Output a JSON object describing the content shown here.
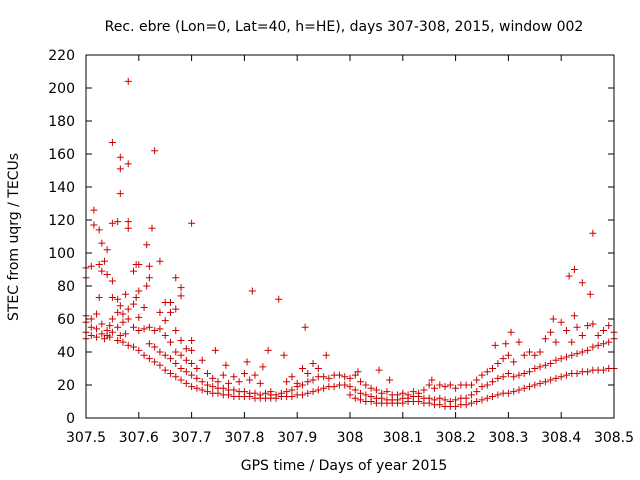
{
  "chart_data": {
    "type": "scatter",
    "title": "Rec. ebre (Lon=0, Lat=40, h=HE), days 307-308, 2015, window 002",
    "xlabel": "GPS time / Days of year 2015",
    "ylabel": "STEC from uqrg / TECUs",
    "xlim": [
      307.5,
      308.5
    ],
    "ylim": [
      0,
      220
    ],
    "xticks": [
      "307.5",
      "307.6",
      "307.7",
      "307.8",
      "307.9",
      "308",
      "308.1",
      "308.2",
      "308.3",
      "308.4",
      "308.5"
    ],
    "yticks": [
      "0",
      "20",
      "40",
      "60",
      "80",
      "100",
      "120",
      "140",
      "160",
      "180",
      "200",
      "220"
    ],
    "grid": false,
    "marker": "+",
    "color": "#cc0000",
    "points": [
      [
        307.5,
        48
      ],
      [
        307.5,
        52
      ],
      [
        307.5,
        58
      ],
      [
        307.5,
        62
      ],
      [
        307.5,
        85
      ],
      [
        307.5,
        91
      ],
      [
        307.51,
        50
      ],
      [
        307.51,
        55
      ],
      [
        307.51,
        60
      ],
      [
        307.51,
        92
      ],
      [
        307.515,
        117
      ],
      [
        307.515,
        126
      ],
      [
        307.52,
        49
      ],
      [
        307.52,
        54
      ],
      [
        307.52,
        63
      ],
      [
        307.525,
        73
      ],
      [
        307.525,
        93
      ],
      [
        307.525,
        114
      ],
      [
        307.53,
        51
      ],
      [
        307.53,
        57
      ],
      [
        307.53,
        89
      ],
      [
        307.53,
        106
      ],
      [
        307.535,
        48
      ],
      [
        307.535,
        95
      ],
      [
        307.54,
        50
      ],
      [
        307.54,
        53
      ],
      [
        307.54,
        87
      ],
      [
        307.54,
        102
      ],
      [
        307.545,
        49
      ],
      [
        307.545,
        56
      ],
      [
        307.55,
        52
      ],
      [
        307.55,
        60
      ],
      [
        307.55,
        73
      ],
      [
        307.55,
        83
      ],
      [
        307.55,
        118
      ],
      [
        307.55,
        167
      ],
      [
        307.56,
        47
      ],
      [
        307.56,
        55
      ],
      [
        307.56,
        64
      ],
      [
        307.56,
        72
      ],
      [
        307.56,
        119
      ],
      [
        307.565,
        50
      ],
      [
        307.565,
        68
      ],
      [
        307.565,
        136
      ],
      [
        307.565,
        151
      ],
      [
        307.565,
        158
      ],
      [
        307.57,
        46
      ],
      [
        307.57,
        58
      ],
      [
        307.57,
        63
      ],
      [
        307.575,
        51
      ],
      [
        307.575,
        75
      ],
      [
        307.58,
        44
      ],
      [
        307.58,
        60
      ],
      [
        307.58,
        66
      ],
      [
        307.58,
        115
      ],
      [
        307.58,
        119
      ],
      [
        307.58,
        154
      ],
      [
        307.58,
        204
      ],
      [
        307.59,
        43
      ],
      [
        307.59,
        55
      ],
      [
        307.59,
        69
      ],
      [
        307.59,
        89
      ],
      [
        307.595,
        73
      ],
      [
        307.595,
        93
      ],
      [
        307.6,
        41
      ],
      [
        307.6,
        53
      ],
      [
        307.6,
        61
      ],
      [
        307.6,
        77
      ],
      [
        307.6,
        93
      ],
      [
        307.61,
        38
      ],
      [
        307.61,
        54
      ],
      [
        307.61,
        67
      ],
      [
        307.615,
        80
      ],
      [
        307.615,
        105
      ],
      [
        307.62,
        36
      ],
      [
        307.62,
        45
      ],
      [
        307.62,
        55
      ],
      [
        307.62,
        85
      ],
      [
        307.62,
        92
      ],
      [
        307.625,
        115
      ],
      [
        307.63,
        34
      ],
      [
        307.63,
        43
      ],
      [
        307.63,
        53
      ],
      [
        307.63,
        162
      ],
      [
        307.64,
        32
      ],
      [
        307.64,
        40
      ],
      [
        307.64,
        54
      ],
      [
        307.64,
        64
      ],
      [
        307.64,
        95
      ],
      [
        307.65,
        29
      ],
      [
        307.65,
        38
      ],
      [
        307.65,
        50
      ],
      [
        307.65,
        59
      ],
      [
        307.65,
        70
      ],
      [
        307.66,
        27
      ],
      [
        307.66,
        36
      ],
      [
        307.66,
        46
      ],
      [
        307.66,
        64
      ],
      [
        307.66,
        70
      ],
      [
        307.67,
        25
      ],
      [
        307.67,
        33
      ],
      [
        307.67,
        40
      ],
      [
        307.67,
        53
      ],
      [
        307.67,
        66
      ],
      [
        307.67,
        85
      ],
      [
        307.68,
        23
      ],
      [
        307.68,
        30
      ],
      [
        307.68,
        38
      ],
      [
        307.68,
        47
      ],
      [
        307.68,
        74
      ],
      [
        307.68,
        79
      ],
      [
        307.69,
        21
      ],
      [
        307.69,
        28
      ],
      [
        307.69,
        35
      ],
      [
        307.69,
        42
      ],
      [
        307.7,
        19
      ],
      [
        307.7,
        26
      ],
      [
        307.7,
        33
      ],
      [
        307.7,
        41
      ],
      [
        307.7,
        47
      ],
      [
        307.7,
        118
      ],
      [
        307.71,
        18
      ],
      [
        307.71,
        24
      ],
      [
        307.71,
        30
      ],
      [
        307.72,
        17
      ],
      [
        307.72,
        22
      ],
      [
        307.72,
        35
      ],
      [
        307.73,
        16
      ],
      [
        307.73,
        20
      ],
      [
        307.73,
        27
      ],
      [
        307.74,
        15
      ],
      [
        307.74,
        19
      ],
      [
        307.74,
        24
      ],
      [
        307.745,
        41
      ],
      [
        307.75,
        15
      ],
      [
        307.75,
        18
      ],
      [
        307.75,
        22
      ],
      [
        307.76,
        14
      ],
      [
        307.76,
        18
      ],
      [
        307.76,
        26
      ],
      [
        307.765,
        32
      ],
      [
        307.77,
        14
      ],
      [
        307.77,
        17
      ],
      [
        307.77,
        21
      ],
      [
        307.78,
        13
      ],
      [
        307.78,
        17
      ],
      [
        307.78,
        25
      ],
      [
        307.79,
        13
      ],
      [
        307.79,
        16
      ],
      [
        307.79,
        22
      ],
      [
        307.8,
        13
      ],
      [
        307.8,
        16
      ],
      [
        307.8,
        27
      ],
      [
        307.805,
        34
      ],
      [
        307.81,
        13
      ],
      [
        307.81,
        15
      ],
      [
        307.81,
        23
      ],
      [
        307.815,
        77
      ],
      [
        307.82,
        12
      ],
      [
        307.82,
        15
      ],
      [
        307.82,
        26
      ],
      [
        307.83,
        12
      ],
      [
        307.83,
        14
      ],
      [
        307.83,
        21
      ],
      [
        307.835,
        31
      ],
      [
        307.84,
        12
      ],
      [
        307.84,
        15
      ],
      [
        307.845,
        41
      ],
      [
        307.85,
        12
      ],
      [
        307.85,
        14
      ],
      [
        307.85,
        16
      ],
      [
        307.86,
        12
      ],
      [
        307.86,
        14
      ],
      [
        307.865,
        72
      ],
      [
        307.87,
        13
      ],
      [
        307.87,
        15
      ],
      [
        307.875,
        38
      ],
      [
        307.88,
        13
      ],
      [
        307.88,
        16
      ],
      [
        307.88,
        22
      ],
      [
        307.89,
        13
      ],
      [
        307.89,
        17
      ],
      [
        307.89,
        25
      ],
      [
        307.9,
        14
      ],
      [
        307.9,
        19
      ],
      [
        307.9,
        21
      ],
      [
        307.91,
        14
      ],
      [
        307.91,
        20
      ],
      [
        307.91,
        30
      ],
      [
        307.915,
        55
      ],
      [
        307.92,
        15
      ],
      [
        307.92,
        22
      ],
      [
        307.92,
        27
      ],
      [
        307.93,
        16
      ],
      [
        307.93,
        23
      ],
      [
        307.93,
        33
      ],
      [
        307.94,
        17
      ],
      [
        307.94,
        25
      ],
      [
        307.94,
        30
      ],
      [
        307.95,
        18
      ],
      [
        307.95,
        25
      ],
      [
        307.955,
        38
      ],
      [
        307.96,
        19
      ],
      [
        307.96,
        24
      ],
      [
        307.97,
        19
      ],
      [
        307.97,
        26
      ],
      [
        307.98,
        20
      ],
      [
        307.98,
        26
      ],
      [
        307.99,
        20
      ],
      [
        307.99,
        25
      ],
      [
        308.0,
        14
      ],
      [
        308.0,
        19
      ],
      [
        308.0,
        24
      ],
      [
        308.01,
        12
      ],
      [
        308.01,
        17
      ],
      [
        308.01,
        26
      ],
      [
        308.015,
        28
      ],
      [
        308.02,
        11
      ],
      [
        308.02,
        15
      ],
      [
        308.02,
        22
      ],
      [
        308.03,
        10
      ],
      [
        308.03,
        14
      ],
      [
        308.03,
        20
      ],
      [
        308.04,
        10
      ],
      [
        308.04,
        13
      ],
      [
        308.04,
        18
      ],
      [
        308.05,
        9
      ],
      [
        308.05,
        12
      ],
      [
        308.05,
        17
      ],
      [
        308.055,
        29
      ],
      [
        308.06,
        9
      ],
      [
        308.06,
        12
      ],
      [
        308.06,
        15
      ],
      [
        308.07,
        9
      ],
      [
        308.07,
        11
      ],
      [
        308.07,
        16
      ],
      [
        308.075,
        23
      ],
      [
        308.08,
        9
      ],
      [
        308.08,
        11
      ],
      [
        308.08,
        14
      ],
      [
        308.09,
        9
      ],
      [
        308.09,
        11
      ],
      [
        308.09,
        14
      ],
      [
        308.1,
        9
      ],
      [
        308.1,
        12
      ],
      [
        308.1,
        15
      ],
      [
        308.11,
        10
      ],
      [
        308.11,
        12
      ],
      [
        308.11,
        14
      ],
      [
        308.12,
        10
      ],
      [
        308.12,
        13
      ],
      [
        308.12,
        16
      ],
      [
        308.13,
        10
      ],
      [
        308.13,
        13
      ],
      [
        308.13,
        15
      ],
      [
        308.14,
        9
      ],
      [
        308.14,
        12
      ],
      [
        308.14,
        17
      ],
      [
        308.15,
        9
      ],
      [
        308.15,
        12
      ],
      [
        308.15,
        20
      ],
      [
        308.155,
        23
      ],
      [
        308.16,
        8
      ],
      [
        308.16,
        11
      ],
      [
        308.16,
        18
      ],
      [
        308.17,
        8
      ],
      [
        308.17,
        12
      ],
      [
        308.17,
        20
      ],
      [
        308.18,
        7
      ],
      [
        308.18,
        11
      ],
      [
        308.18,
        19
      ],
      [
        308.19,
        7
      ],
      [
        308.19,
        10
      ],
      [
        308.19,
        20
      ],
      [
        308.2,
        7
      ],
      [
        308.2,
        11
      ],
      [
        308.2,
        18
      ],
      [
        308.21,
        8
      ],
      [
        308.21,
        12
      ],
      [
        308.21,
        20
      ],
      [
        308.22,
        8
      ],
      [
        308.22,
        12
      ],
      [
        308.22,
        20
      ],
      [
        308.23,
        9
      ],
      [
        308.23,
        14
      ],
      [
        308.23,
        20
      ],
      [
        308.24,
        10
      ],
      [
        308.24,
        16
      ],
      [
        308.24,
        23
      ],
      [
        308.25,
        11
      ],
      [
        308.25,
        19
      ],
      [
        308.25,
        26
      ],
      [
        308.26,
        12
      ],
      [
        308.26,
        20
      ],
      [
        308.26,
        28
      ],
      [
        308.27,
        13
      ],
      [
        308.27,
        22
      ],
      [
        308.27,
        30
      ],
      [
        308.275,
        44
      ],
      [
        308.28,
        14
      ],
      [
        308.28,
        24
      ],
      [
        308.28,
        33
      ],
      [
        308.29,
        15
      ],
      [
        308.29,
        25
      ],
      [
        308.29,
        36
      ],
      [
        308.295,
        45
      ],
      [
        308.3,
        15
      ],
      [
        308.3,
        27
      ],
      [
        308.3,
        38
      ],
      [
        308.305,
        52
      ],
      [
        308.31,
        16
      ],
      [
        308.31,
        25
      ],
      [
        308.31,
        34
      ],
      [
        308.32,
        17
      ],
      [
        308.32,
        26
      ],
      [
        308.32,
        46
      ],
      [
        308.33,
        18
      ],
      [
        308.33,
        27
      ],
      [
        308.33,
        38
      ],
      [
        308.34,
        19
      ],
      [
        308.34,
        28
      ],
      [
        308.34,
        40
      ],
      [
        308.35,
        20
      ],
      [
        308.35,
        30
      ],
      [
        308.35,
        38
      ],
      [
        308.36,
        21
      ],
      [
        308.36,
        31
      ],
      [
        308.36,
        40
      ],
      [
        308.37,
        22
      ],
      [
        308.37,
        32
      ],
      [
        308.37,
        48
      ],
      [
        308.38,
        23
      ],
      [
        308.38,
        33
      ],
      [
        308.38,
        52
      ],
      [
        308.385,
        60
      ],
      [
        308.39,
        24
      ],
      [
        308.39,
        35
      ],
      [
        308.39,
        46
      ],
      [
        308.4,
        25
      ],
      [
        308.4,
        36
      ],
      [
        308.4,
        58
      ],
      [
        308.41,
        26
      ],
      [
        308.41,
        37
      ],
      [
        308.41,
        53
      ],
      [
        308.415,
        86
      ],
      [
        308.42,
        27
      ],
      [
        308.42,
        38
      ],
      [
        308.42,
        46
      ],
      [
        308.425,
        62
      ],
      [
        308.425,
        90
      ],
      [
        308.43,
        27
      ],
      [
        308.43,
        39
      ],
      [
        308.43,
        55
      ],
      [
        308.44,
        28
      ],
      [
        308.44,
        40
      ],
      [
        308.44,
        50
      ],
      [
        308.44,
        82
      ],
      [
        308.45,
        28
      ],
      [
        308.45,
        41
      ],
      [
        308.45,
        56
      ],
      [
        308.455,
        75
      ],
      [
        308.46,
        29
      ],
      [
        308.46,
        43
      ],
      [
        308.46,
        57
      ],
      [
        308.46,
        112
      ],
      [
        308.47,
        29
      ],
      [
        308.47,
        44
      ],
      [
        308.47,
        50
      ],
      [
        308.48,
        29
      ],
      [
        308.48,
        45
      ],
      [
        308.48,
        53
      ],
      [
        308.49,
        30
      ],
      [
        308.49,
        46
      ],
      [
        308.49,
        56
      ],
      [
        308.5,
        30
      ],
      [
        308.5,
        48
      ],
      [
        308.5,
        52
      ]
    ]
  }
}
